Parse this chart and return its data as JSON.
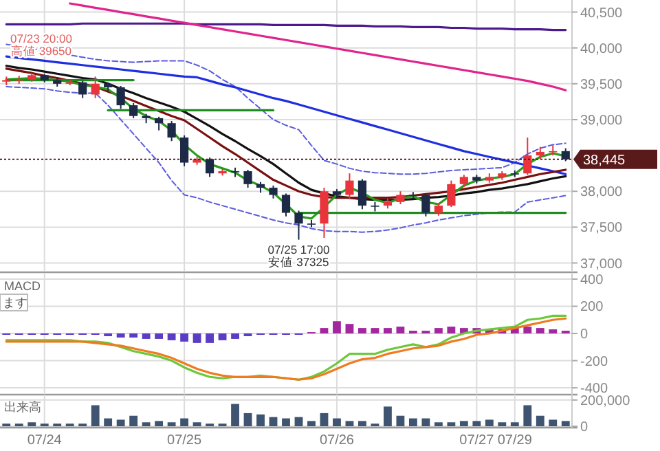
{
  "chart_data": [
    {
      "type": "candlestick",
      "categories": [
        null,
        null,
        null,
        null,
        null,
        null,
        null,
        null,
        null,
        null,
        null,
        null,
        null,
        null,
        null,
        null,
        null,
        null,
        null,
        null,
        null,
        null,
        null,
        null,
        null,
        null,
        null,
        null,
        null,
        null,
        null,
        null,
        null,
        null,
        null,
        null,
        null,
        null,
        null,
        null,
        null,
        null,
        null,
        null,
        null
      ],
      "ylim": [
        36890,
        40630
      ],
      "yticks": [
        {
          "value": 37000,
          "label": "37,000"
        },
        {
          "value": 37500,
          "label": "37,500"
        },
        {
          "value": 38000,
          "label": "38,000"
        },
        {
          "value": 39000,
          "label": "39,000"
        },
        {
          "value": 39500,
          "label": "39,500"
        },
        {
          "value": 40000,
          "label": "40,000"
        },
        {
          "value": 40500,
          "label": "40,500"
        }
      ],
      "tick_labels": "y",
      "grid": true,
      "ohlc": [
        [
          39530,
          39600,
          39480,
          39550
        ],
        [
          39550,
          39610,
          39500,
          39560
        ],
        [
          39560,
          39650,
          39530,
          39620
        ],
        [
          39620,
          39640,
          39520,
          39550
        ],
        [
          39550,
          39570,
          39460,
          39500
        ],
        [
          39500,
          39560,
          39480,
          39520
        ],
        [
          39520,
          39540,
          39300,
          39350
        ],
        [
          39350,
          39600,
          39300,
          39500
        ],
        [
          39500,
          39520,
          39400,
          39450
        ],
        [
          39450,
          39470,
          39150,
          39200
        ],
        [
          39200,
          39230,
          39020,
          39050
        ],
        [
          39050,
          39080,
          38950,
          39020
        ],
        [
          39020,
          39040,
          38850,
          38950
        ],
        [
          38950,
          38980,
          38700,
          38750
        ],
        [
          38750,
          38780,
          38350,
          38400
        ],
        [
          38400,
          38480,
          38370,
          38450
        ],
        [
          38450,
          38470,
          38200,
          38250
        ],
        [
          38250,
          38310,
          38220,
          38280
        ],
        [
          38280,
          38330,
          38200,
          38280
        ],
        [
          38280,
          38300,
          38050,
          38100
        ],
        [
          38100,
          38130,
          37980,
          38050
        ],
        [
          38050,
          38080,
          37900,
          37950
        ],
        [
          37950,
          37970,
          37650,
          37700
        ],
        [
          37700,
          37730,
          37325,
          37550
        ],
        [
          37550,
          37600,
          37500,
          37550
        ],
        [
          37550,
          38050,
          37350,
          38000
        ],
        [
          38000,
          38030,
          37900,
          37950
        ],
        [
          37950,
          38250,
          37900,
          38150
        ],
        [
          38150,
          38170,
          37750,
          37800
        ],
        [
          37800,
          37850,
          37720,
          37800
        ],
        [
          37800,
          37900,
          37760,
          37850
        ],
        [
          37850,
          38000,
          37820,
          37950
        ],
        [
          37950,
          37990,
          37900,
          37950
        ],
        [
          37950,
          37970,
          37650,
          37700
        ],
        [
          37700,
          37830,
          37660,
          37800
        ],
        [
          37800,
          38150,
          37780,
          38100
        ],
        [
          38100,
          38230,
          38060,
          38200
        ],
        [
          38200,
          38230,
          38110,
          38150
        ],
        [
          38150,
          38250,
          38120,
          38200
        ],
        [
          38200,
          38280,
          38160,
          38250
        ],
        [
          38250,
          38290,
          38200,
          38250
        ],
        [
          38250,
          38750,
          38230,
          38500
        ],
        [
          38500,
          38620,
          38450,
          38550
        ],
        [
          38550,
          38640,
          38500,
          38560
        ],
        [
          38560,
          38600,
          38420,
          38445
        ]
      ],
      "series": [
        {
          "type": "line",
          "color": "#4b1a8c",
          "values": [
            40330,
            40330,
            40330,
            40330,
            40330,
            40330,
            40340,
            40340,
            40340,
            40340,
            40340,
            40340,
            40340,
            40340,
            40340,
            40330,
            40330,
            40330,
            40330,
            40330,
            40330,
            40320,
            40320,
            40320,
            40320,
            40320,
            40310,
            40310,
            40310,
            40300,
            40300,
            40300,
            40290,
            40290,
            40290,
            40280,
            40280,
            40270,
            40270,
            40270,
            40260,
            40260,
            40260,
            40250,
            40250
          ]
        },
        {
          "type": "line",
          "color": "#e0248c",
          "values": [
            null,
            null,
            null,
            null,
            null,
            40620,
            40590,
            40560,
            40530,
            40500,
            40470,
            40440,
            40410,
            40380,
            40350,
            40320,
            40290,
            40260,
            40230,
            40200,
            40170,
            40140,
            40110,
            40080,
            40050,
            40020,
            39990,
            39960,
            39930,
            39900,
            39870,
            39840,
            39810,
            39780,
            39750,
            39720,
            39690,
            39660,
            39630,
            39600,
            39570,
            39540,
            39500,
            39460,
            39410
          ]
        },
        {
          "type": "line",
          "color": "#5a5ae0",
          "line_style": "dashed",
          "values": [
            40050,
            40020,
            39990,
            39960,
            39930,
            39900,
            39870,
            39840,
            39820,
            39810,
            39800,
            39810,
            39820,
            39820,
            39820,
            39760,
            39680,
            39560,
            39460,
            39300,
            39150,
            39000,
            38920,
            38860,
            38640,
            38430,
            38380,
            38320,
            38280,
            38260,
            38250,
            38240,
            38240,
            38250,
            38270,
            38290,
            38300,
            38310,
            38320,
            38330,
            38400,
            38520,
            38600,
            38650,
            38670
          ]
        },
        {
          "type": "line",
          "color": "#5a5ae0",
          "line_style": "dashed",
          "values": [
            39460,
            39450,
            39440,
            39430,
            39400,
            39380,
            39370,
            39370,
            39200,
            39000,
            38800,
            38600,
            38400,
            38150,
            37950,
            37910,
            37850,
            37800,
            37750,
            37700,
            37650,
            37600,
            37560,
            37530,
            37480,
            37450,
            37440,
            37440,
            37430,
            37440,
            37460,
            37490,
            37530,
            37560,
            37600,
            37630,
            37660,
            37680,
            37700,
            37710,
            37710,
            37850,
            37880,
            37910,
            37940
          ]
        },
        {
          "type": "line",
          "color": "#1f2ee0",
          "values": [
            39880,
            39860,
            39840,
            39820,
            39800,
            39780,
            39760,
            39740,
            39720,
            39700,
            39680,
            39660,
            39640,
            39620,
            39600,
            39590,
            39540,
            39490,
            39450,
            39400,
            39350,
            39300,
            39260,
            39210,
            39160,
            39110,
            39060,
            39010,
            38960,
            38910,
            38860,
            38810,
            38760,
            38710,
            38660,
            38610,
            38560,
            38520,
            38480,
            38440,
            38400,
            38360,
            38320,
            38280,
            38240
          ]
        },
        {
          "type": "line",
          "color": "#111111",
          "values": [
            39750,
            39720,
            39700,
            39670,
            39640,
            39610,
            39580,
            39560,
            39500,
            39430,
            39370,
            39300,
            39240,
            39180,
            39110,
            39010,
            38910,
            38800,
            38700,
            38590,
            38490,
            38380,
            38250,
            38120,
            38020,
            37970,
            37930,
            37910,
            37890,
            37880,
            37880,
            37880,
            37890,
            37910,
            37920,
            37940,
            37970,
            37990,
            38020,
            38040,
            38070,
            38100,
            38140,
            38180,
            38210
          ]
        },
        {
          "type": "line",
          "color": "#7a1010",
          "values": [
            39710,
            39680,
            39650,
            39610,
            39580,
            39540,
            39500,
            39460,
            39390,
            39330,
            39260,
            39190,
            39120,
            39050,
            38990,
            38870,
            38750,
            38630,
            38520,
            38400,
            38280,
            38160,
            38080,
            38000,
            37950,
            37920,
            37910,
            37910,
            37910,
            37910,
            37910,
            37920,
            37940,
            37960,
            37980,
            38000,
            38030,
            38060,
            38090,
            38120,
            38160,
            38200,
            38240,
            38270,
            38300
          ]
        },
        {
          "type": "line",
          "color": "#2a9a1a",
          "values": [
            39560,
            39570,
            39580,
            39570,
            39550,
            39530,
            39480,
            39460,
            39420,
            39300,
            39150,
            39050,
            38980,
            38850,
            38650,
            38500,
            38380,
            38320,
            38260,
            38150,
            38080,
            37980,
            37820,
            37650,
            37620,
            37780,
            37950,
            38050,
            37980,
            37880,
            37840,
            37900,
            37930,
            37850,
            37820,
            37950,
            38080,
            38150,
            38180,
            38200,
            38240,
            38380,
            38480,
            38530,
            38490
          ]
        },
        {
          "type": "line",
          "color": "#1f8a1f",
          "values": [
            39550,
            39550,
            39550,
            39550,
            39550,
            39550,
            39550,
            39550,
            39550,
            39550,
            39550,
            null,
            null,
            null,
            null,
            null,
            null,
            null,
            null,
            null,
            null,
            null,
            null,
            null,
            null,
            null,
            null,
            null,
            null,
            null,
            null,
            null,
            null,
            null,
            null,
            null,
            null,
            null,
            null,
            null,
            null,
            null,
            null,
            null,
            null
          ]
        },
        {
          "type": "line",
          "color": "#1f8a1f",
          "values": [
            null,
            null,
            null,
            null,
            null,
            null,
            null,
            null,
            39130,
            39130,
            39130,
            39130,
            39130,
            39130,
            39130,
            39130,
            39130,
            39130,
            39130,
            39130,
            39130,
            39130,
            null,
            null,
            null,
            null,
            null,
            null,
            null,
            null,
            null,
            null,
            null,
            null,
            null,
            null,
            null,
            null,
            null,
            null,
            null,
            null,
            null,
            null,
            null
          ]
        },
        {
          "type": "line",
          "color": "#1f8a1f",
          "values": [
            null,
            null,
            null,
            null,
            null,
            null,
            null,
            null,
            null,
            null,
            null,
            null,
            null,
            null,
            null,
            null,
            null,
            null,
            null,
            null,
            null,
            null,
            null,
            37700,
            37700,
            37700,
            37700,
            37700,
            37700,
            37700,
            37700,
            37700,
            37700,
            37700,
            37700,
            37700,
            37700,
            37700,
            37700,
            37700,
            37700,
            37700,
            37700,
            37700,
            37700
          ]
        }
      ],
      "ref_lines": [
        {
          "axis": "y",
          "value": 38445,
          "label": "38,445",
          "color": "#5a1a1a",
          "line_style": "dotted"
        }
      ],
      "annotations": [
        {
          "text": "07/23 20:00",
          "y": 39650
        },
        {
          "text": "高値 39650",
          "y": 39650
        },
        {
          "text": "07/25 17:00",
          "y": 37325
        },
        {
          "text": "安値 37325",
          "y": 37325
        }
      ]
    },
    {
      "type": "bar",
      "title": "MACD",
      "categories": [
        null,
        null,
        null,
        null,
        null,
        null,
        null,
        null,
        null,
        null,
        null,
        null,
        null,
        null,
        null,
        null,
        null,
        null,
        null,
        null,
        null,
        null,
        null,
        null,
        null,
        null,
        null,
        null,
        null,
        null,
        null,
        null,
        null,
        null,
        null,
        null,
        null,
        null,
        null,
        null,
        null,
        null,
        null,
        null,
        null
      ],
      "ylim": [
        -440,
        420
      ],
      "yticks": [
        {
          "value": -400,
          "label": "-400"
        },
        {
          "value": -200,
          "label": "-200"
        },
        0,
        200,
        400
      ],
      "tick_labels": "y",
      "grid": true,
      "values": [
        -10,
        -10,
        -10,
        -10,
        -10,
        -10,
        -10,
        -10,
        -20,
        -30,
        -30,
        -40,
        -40,
        -50,
        -60,
        -70,
        -70,
        -50,
        -40,
        -20,
        -10,
        -10,
        -10,
        -10,
        10,
        40,
        90,
        70,
        40,
        40,
        40,
        50,
        20,
        20,
        40,
        50,
        40,
        40,
        30,
        30,
        40,
        50,
        40,
        30,
        20
      ],
      "colors": [
        "#5b3cc4",
        "#5b3cc4",
        "#5b3cc4",
        "#5b3cc4",
        "#5b3cc4",
        "#5b3cc4",
        "#5b3cc4",
        "#5b3cc4",
        "#5b3cc4",
        "#5b3cc4",
        "#5b3cc4",
        "#5b3cc4",
        "#5b3cc4",
        "#5b3cc4",
        "#5b3cc4",
        "#5b3cc4",
        "#5b3cc4",
        "#5b3cc4",
        "#5b3cc4",
        "#5b3cc4",
        "#5b3cc4",
        "#5b3cc4",
        "#5b3cc4",
        "#5b3cc4",
        "#a3279e",
        "#a3279e",
        "#a3279e",
        "#a3279e",
        "#a3279e",
        "#a3279e",
        "#a3279e",
        "#a3279e",
        "#a3279e",
        "#a3279e",
        "#a3279e",
        "#a3279e",
        "#a3279e",
        "#a3279e",
        "#a3279e",
        "#a3279e",
        "#a3279e",
        "#a3279e",
        "#a3279e",
        "#a3279e",
        "#a3279e"
      ],
      "series": [
        {
          "type": "line",
          "color": "#6cc83a",
          "values": [
            -50,
            -50,
            -50,
            -50,
            -50,
            -50,
            -60,
            -60,
            -70,
            -100,
            -130,
            -150,
            -170,
            -200,
            -250,
            -290,
            -320,
            -330,
            -320,
            -320,
            -310,
            -320,
            -330,
            -340,
            -320,
            -280,
            -220,
            -150,
            -150,
            -150,
            -120,
            -100,
            -80,
            -100,
            -80,
            -30,
            0,
            20,
            30,
            40,
            50,
            100,
            110,
            130,
            130
          ]
        },
        {
          "type": "line",
          "color": "#f07a20",
          "values": [
            -60,
            -60,
            -60,
            -60,
            -60,
            -60,
            -60,
            -70,
            -80,
            -90,
            -110,
            -130,
            -150,
            -180,
            -220,
            -260,
            -290,
            -310,
            -320,
            -320,
            -320,
            -320,
            -330,
            -340,
            -330,
            -300,
            -260,
            -220,
            -190,
            -180,
            -150,
            -130,
            -110,
            -100,
            -90,
            -60,
            -40,
            -10,
            0,
            20,
            40,
            60,
            80,
            100,
            110
          ]
        }
      ],
      "annotations": [
        "ます"
      ]
    },
    {
      "type": "bar",
      "title": "出来高",
      "categories": [
        null,
        null,
        null,
        "07/24",
        null,
        null,
        null,
        null,
        null,
        null,
        null,
        null,
        null,
        null,
        "07/25",
        null,
        null,
        null,
        null,
        null,
        null,
        null,
        null,
        null,
        null,
        null,
        "07/26",
        null,
        null,
        null,
        null,
        null,
        null,
        null,
        null,
        null,
        null,
        "07/27",
        null,
        null,
        "07/29",
        null,
        null,
        null,
        null
      ],
      "ylim": [
        0,
        220000
      ],
      "yticks": [
        0,
        {
          "value": 200000,
          "label": "200,000"
        }
      ],
      "grid": true,
      "color": "#3e5470",
      "values": [
        20000,
        20000,
        30000,
        20000,
        20000,
        20000,
        20000,
        160000,
        60000,
        50000,
        80000,
        30000,
        40000,
        30000,
        60000,
        30000,
        20000,
        20000,
        170000,
        100000,
        90000,
        70000,
        60000,
        70000,
        40000,
        100000,
        60000,
        40000,
        40000,
        20000,
        150000,
        80000,
        60000,
        60000,
        30000,
        30000,
        40000,
        40000,
        50000,
        30000,
        30000,
        160000,
        80000,
        50000,
        40000
      ]
    }
  ]
}
